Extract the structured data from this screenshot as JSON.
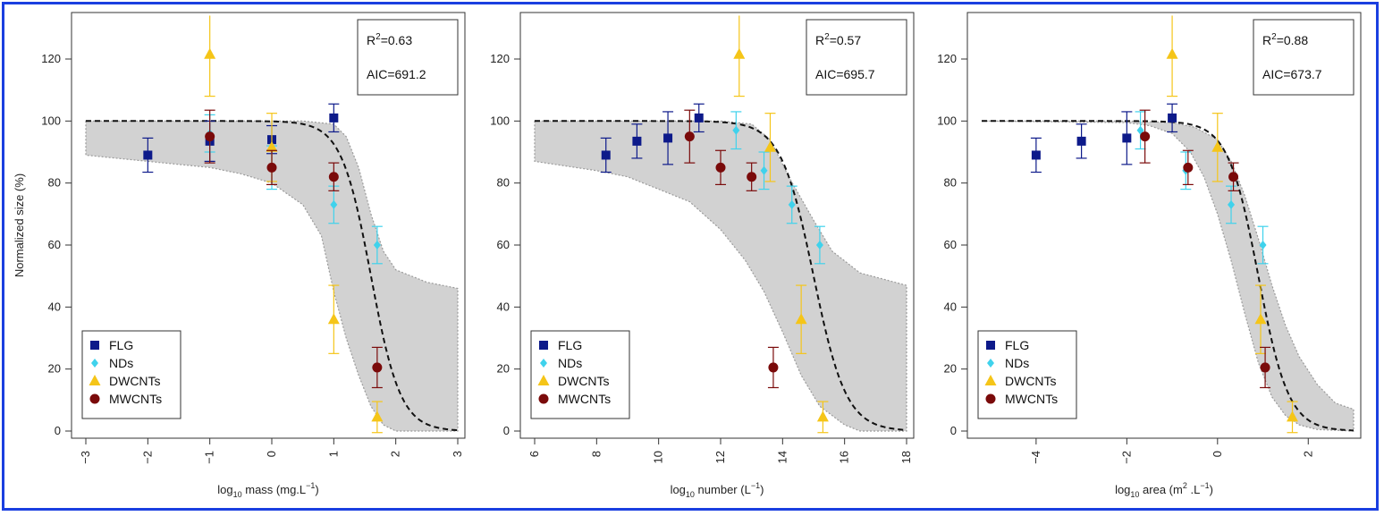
{
  "chart_data": [
    {
      "type": "scatter",
      "xlabel": {
        "base": "log",
        "sub": "10",
        "main": " mass (mg.L",
        "sup": "−1",
        "tail": ")"
      },
      "ylabel": "Normalized size (%)",
      "xlim": [
        -3,
        3
      ],
      "ylim": [
        0,
        130
      ],
      "xticks": [
        -3,
        -2,
        -1,
        0,
        1,
        2,
        3
      ],
      "yticks": [
        0,
        20,
        40,
        60,
        80,
        100,
        120
      ],
      "stats": {
        "r2_value": "=0.63",
        "aic": "AIC=691.2"
      },
      "fit": {
        "top": 100,
        "midpoint": 1.6,
        "slope": 4.2
      },
      "band": {
        "upper": [
          [
            -3,
            100
          ],
          [
            -1,
            100
          ],
          [
            0,
            100
          ],
          [
            0.5,
            100
          ],
          [
            1,
            99
          ],
          [
            1.2,
            95
          ],
          [
            1.4,
            85
          ],
          [
            1.6,
            70
          ],
          [
            1.8,
            58
          ],
          [
            2,
            52
          ],
          [
            2.5,
            48
          ],
          [
            3,
            46
          ]
        ],
        "lower": [
          [
            -3,
            89
          ],
          [
            -2,
            87
          ],
          [
            -1,
            85
          ],
          [
            -0.5,
            83
          ],
          [
            0,
            80
          ],
          [
            0.5,
            73
          ],
          [
            0.8,
            63
          ],
          [
            1,
            45
          ],
          [
            1.2,
            30
          ],
          [
            1.4,
            18
          ],
          [
            1.6,
            8
          ],
          [
            1.8,
            2
          ],
          [
            2,
            0
          ],
          [
            3,
            0
          ]
        ]
      },
      "series": [
        {
          "name": "FLG",
          "color": "#0d1a8a",
          "marker": "square",
          "points": [
            {
              "x": -2,
              "y": 89,
              "err": 5.5
            },
            {
              "x": -1,
              "y": 93.5,
              "err": 6.5
            },
            {
              "x": 0,
              "y": 94,
              "err": 4.5
            },
            {
              "x": 1,
              "y": 101,
              "err": 4.5
            }
          ]
        },
        {
          "name": "NDs",
          "color": "#3fd2ec",
          "marker": "diamond",
          "points": [
            {
              "x": -1,
              "y": 96,
              "err": 6
            },
            {
              "x": 0,
              "y": 85,
              "err": 7
            },
            {
              "x": 1,
              "y": 73,
              "err": 6
            },
            {
              "x": 1.7,
              "y": 60,
              "err": 6
            }
          ]
        },
        {
          "name": "DWCNTs",
          "color": "#f5c518",
          "marker": "triangle",
          "points": [
            {
              "x": -1,
              "y": 121.5,
              "err": 13.5
            },
            {
              "x": 0,
              "y": 91.5,
              "err": 11
            },
            {
              "x": 1,
              "y": 36,
              "err": 11
            },
            {
              "x": 1.7,
              "y": 4.5,
              "err": 5
            }
          ]
        },
        {
          "name": "MWCNTs",
          "color": "#7a0a0a",
          "marker": "circle",
          "points": [
            {
              "x": -1,
              "y": 95,
              "err": 8.5
            },
            {
              "x": 0,
              "y": 85,
              "err": 5.5
            },
            {
              "x": 1,
              "y": 82,
              "err": 4.5
            },
            {
              "x": 1.7,
              "y": 20.5,
              "err": 6.5
            }
          ]
        }
      ]
    },
    {
      "type": "scatter",
      "xlabel": {
        "base": "log",
        "sub": "10",
        "main": " number (L",
        "sup": "−1",
        "tail": ")"
      },
      "ylabel": "",
      "xlim": [
        6,
        18
      ],
      "ylim": [
        0,
        130
      ],
      "xticks": [
        6,
        8,
        10,
        12,
        14,
        16,
        18
      ],
      "yticks": [
        0,
        20,
        40,
        60,
        80,
        100,
        120
      ],
      "stats": {
        "r2_value": "=0.57",
        "aic": "AIC=695.7"
      },
      "fit": {
        "top": 100,
        "midpoint": 15.0,
        "slope": 1.9
      },
      "band": {
        "upper": [
          [
            6,
            100
          ],
          [
            10,
            100
          ],
          [
            12,
            100
          ],
          [
            13,
            99
          ],
          [
            13.6,
            94
          ],
          [
            14.2,
            82
          ],
          [
            15,
            68
          ],
          [
            15.6,
            58
          ],
          [
            16.5,
            51
          ],
          [
            18,
            47
          ]
        ],
        "lower": [
          [
            6,
            87
          ],
          [
            8,
            84
          ],
          [
            9,
            82
          ],
          [
            10,
            78
          ],
          [
            11,
            74
          ],
          [
            12,
            65
          ],
          [
            12.8,
            55
          ],
          [
            13.4,
            45
          ],
          [
            14,
            32
          ],
          [
            14.6,
            18
          ],
          [
            15.2,
            8
          ],
          [
            16,
            2
          ],
          [
            16.5,
            0
          ],
          [
            18,
            0
          ]
        ]
      },
      "series": [
        {
          "name": "FLG",
          "color": "#0d1a8a",
          "marker": "square",
          "points": [
            {
              "x": 8.3,
              "y": 89,
              "err": 5.5
            },
            {
              "x": 9.3,
              "y": 93.5,
              "err": 5.5
            },
            {
              "x": 10.3,
              "y": 94.5,
              "err": 8.5
            },
            {
              "x": 11.3,
              "y": 101,
              "err": 4.5
            }
          ]
        },
        {
          "name": "NDs",
          "color": "#3fd2ec",
          "marker": "diamond",
          "points": [
            {
              "x": 12.5,
              "y": 97,
              "err": 6
            },
            {
              "x": 13.4,
              "y": 84,
              "err": 6
            },
            {
              "x": 14.3,
              "y": 73,
              "err": 6
            },
            {
              "x": 15.2,
              "y": 60,
              "err": 6
            }
          ]
        },
        {
          "name": "DWCNTs",
          "color": "#f5c518",
          "marker": "triangle",
          "points": [
            {
              "x": 12.6,
              "y": 121.5,
              "err": 13.5
            },
            {
              "x": 13.6,
              "y": 91.5,
              "err": 11
            },
            {
              "x": 14.6,
              "y": 36,
              "err": 11
            },
            {
              "x": 15.3,
              "y": 4.5,
              "err": 5
            }
          ]
        },
        {
          "name": "MWCNTs",
          "color": "#7a0a0a",
          "marker": "circle",
          "points": [
            {
              "x": 11.0,
              "y": 95,
              "err": 8.5
            },
            {
              "x": 12.0,
              "y": 85,
              "err": 5.5
            },
            {
              "x": 13.0,
              "y": 82,
              "err": 4.5
            },
            {
              "x": 13.7,
              "y": 20.5,
              "err": 6.5
            }
          ]
        }
      ]
    },
    {
      "type": "scatter",
      "xlabel": {
        "base": "log",
        "sub": "10",
        "main": " area (m",
        "sup": "2",
        "tail": " .L",
        "sup2": "−1",
        "tail2": ")"
      },
      "ylabel": "",
      "xlim": [
        -5.2,
        3
      ],
      "ylim": [
        0,
        130
      ],
      "xticks": [
        -4,
        -2,
        0,
        2
      ],
      "yticks": [
        0,
        20,
        40,
        60,
        80,
        100,
        120
      ],
      "stats": {
        "r2_value": "=0.88",
        "aic": "AIC=673.7"
      },
      "fit": {
        "top": 100,
        "midpoint": 0.9,
        "slope": 3.0
      },
      "band": {
        "upper": [
          [
            -5.2,
            100
          ],
          [
            -2,
            100
          ],
          [
            -1,
            99.5
          ],
          [
            -0.5,
            98
          ],
          [
            0,
            94
          ],
          [
            0.3,
            87
          ],
          [
            0.6,
            76
          ],
          [
            0.9,
            62
          ],
          [
            1.2,
            47
          ],
          [
            1.5,
            34
          ],
          [
            1.8,
            24
          ],
          [
            2.2,
            15
          ],
          [
            2.6,
            9
          ],
          [
            3,
            7
          ]
        ],
        "lower": [
          [
            -5.2,
            100
          ],
          [
            -2,
            99.5
          ],
          [
            -1.5,
            98.5
          ],
          [
            -1,
            96
          ],
          [
            -0.6,
            90
          ],
          [
            -0.3,
            82
          ],
          [
            0,
            70
          ],
          [
            0.3,
            55
          ],
          [
            0.6,
            38
          ],
          [
            0.9,
            22
          ],
          [
            1.2,
            11
          ],
          [
            1.5,
            5
          ],
          [
            1.8,
            2
          ],
          [
            2.2,
            0.5
          ],
          [
            3,
            0
          ]
        ]
      },
      "series": [
        {
          "name": "FLG",
          "color": "#0d1a8a",
          "marker": "square",
          "points": [
            {
              "x": -4,
              "y": 89,
              "err": 5.5
            },
            {
              "x": -3,
              "y": 93.5,
              "err": 5.5
            },
            {
              "x": -2,
              "y": 94.5,
              "err": 8.5
            },
            {
              "x": -1,
              "y": 101,
              "err": 4.5
            }
          ]
        },
        {
          "name": "NDs",
          "color": "#3fd2ec",
          "marker": "diamond",
          "points": [
            {
              "x": -1.7,
              "y": 97,
              "err": 6
            },
            {
              "x": -0.7,
              "y": 84,
              "err": 6
            },
            {
              "x": 0.3,
              "y": 73,
              "err": 6
            },
            {
              "x": 1.0,
              "y": 60,
              "err": 6
            }
          ]
        },
        {
          "name": "DWCNTs",
          "color": "#f5c518",
          "marker": "triangle",
          "points": [
            {
              "x": -1,
              "y": 121.5,
              "err": 13.5
            },
            {
              "x": 0,
              "y": 91.5,
              "err": 11
            },
            {
              "x": 0.95,
              "y": 36,
              "err": 11
            },
            {
              "x": 1.65,
              "y": 4.5,
              "err": 5
            }
          ]
        },
        {
          "name": "MWCNTs",
          "color": "#7a0a0a",
          "marker": "circle",
          "points": [
            {
              "x": -1.6,
              "y": 95,
              "err": 8.5
            },
            {
              "x": -0.65,
              "y": 85,
              "err": 5.5
            },
            {
              "x": 0.35,
              "y": 82,
              "err": 4.5
            },
            {
              "x": 1.05,
              "y": 20.5,
              "err": 6.5
            }
          ]
        }
      ]
    }
  ]
}
